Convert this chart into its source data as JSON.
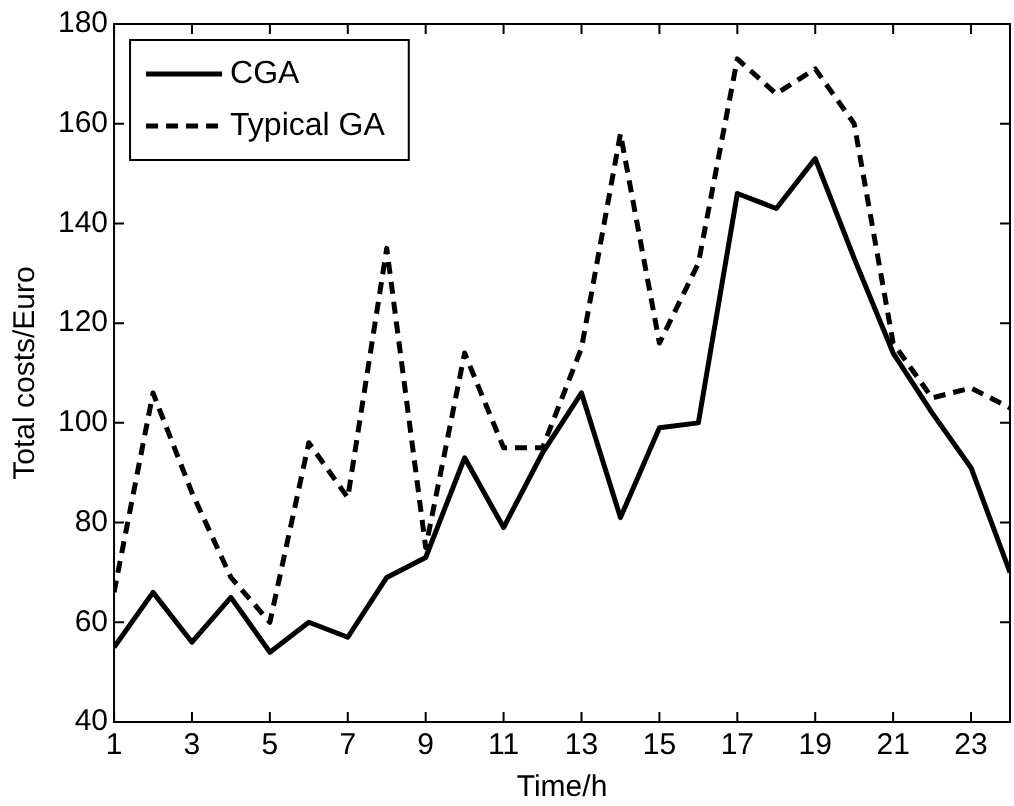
{
  "chart_data": {
    "type": "line",
    "xlabel": "Time/h",
    "ylabel": "Total costs/Euro",
    "x": [
      1,
      2,
      3,
      4,
      5,
      6,
      7,
      8,
      9,
      10,
      11,
      12,
      13,
      14,
      15,
      16,
      17,
      18,
      19,
      20,
      21,
      22,
      23,
      24
    ],
    "series": [
      {
        "name": "CGA",
        "color": "#000000",
        "line_style": "solid",
        "values": [
          55,
          66,
          56,
          65,
          54,
          60,
          57,
          69,
          73,
          93,
          79,
          94,
          106,
          81,
          99,
          100,
          146,
          143,
          153,
          133,
          114,
          102,
          91,
          70
        ]
      },
      {
        "name": "Typical GA",
        "color": "#000000",
        "line_style": "dashed",
        "values": [
          66,
          106,
          86,
          69,
          60,
          96,
          85,
          135,
          75,
          114,
          95,
          95,
          115,
          158,
          116,
          132,
          173,
          166,
          171,
          160,
          116,
          105,
          107,
          103
        ]
      }
    ],
    "xlim": [
      1,
      24
    ],
    "xticks": [
      1,
      3,
      5,
      7,
      9,
      11,
      13,
      15,
      17,
      19,
      21,
      23
    ],
    "ylim": [
      40,
      180
    ],
    "yticks": [
      40,
      60,
      80,
      100,
      120,
      140,
      160,
      180
    ],
    "grid": false,
    "legend": "top left",
    "marker": "none"
  }
}
